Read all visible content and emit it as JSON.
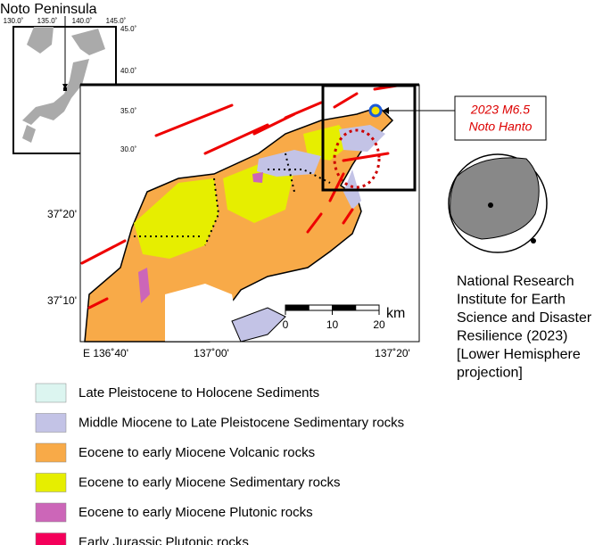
{
  "title": "Noto Peninsula",
  "inset": {
    "lon_labels": [
      "130.0˚",
      "135.0˚",
      "140.0˚",
      "145.0˚"
    ],
    "lat_labels": [
      "45.0˚",
      "40.0˚",
      "35.0˚",
      "30.0˚"
    ]
  },
  "map": {
    "lat_labels": [
      "37˚20'",
      "37˚10'"
    ],
    "lon_labels": [
      "E 136˚40'",
      "137˚00'",
      "137˚20'"
    ],
    "scale": {
      "ticks": [
        0,
        10,
        20
      ],
      "unit": "km"
    }
  },
  "event": {
    "lines": [
      "2023 M6.5",
      "Noto Hanto"
    ]
  },
  "source": {
    "lines": [
      "National Research",
      "Institute for Earth",
      "Science and Disaster",
      "Resilience (2023)",
      "[Lower Hemisphere",
      "projection]"
    ]
  },
  "legend": [
    {
      "label": "Late Pleistocene to Holocene Sediments",
      "color": "#dcf5f0"
    },
    {
      "label": "Middle Miocene to Late Pleistocene Sedimentary rocks",
      "color": "#c3c3e6"
    },
    {
      "label": "Eocene to early Miocene Volcanic rocks",
      "color": "#f8aa48"
    },
    {
      "label": "Eocene to early Miocene Sedimentary rocks",
      "color": "#e6ee00"
    },
    {
      "label": "Eocene to early Miocene Plutonic rocks",
      "color": "#cc66b8"
    },
    {
      "label": "Early Jurassic Plutonic rocks",
      "color": "#f4005a"
    }
  ]
}
